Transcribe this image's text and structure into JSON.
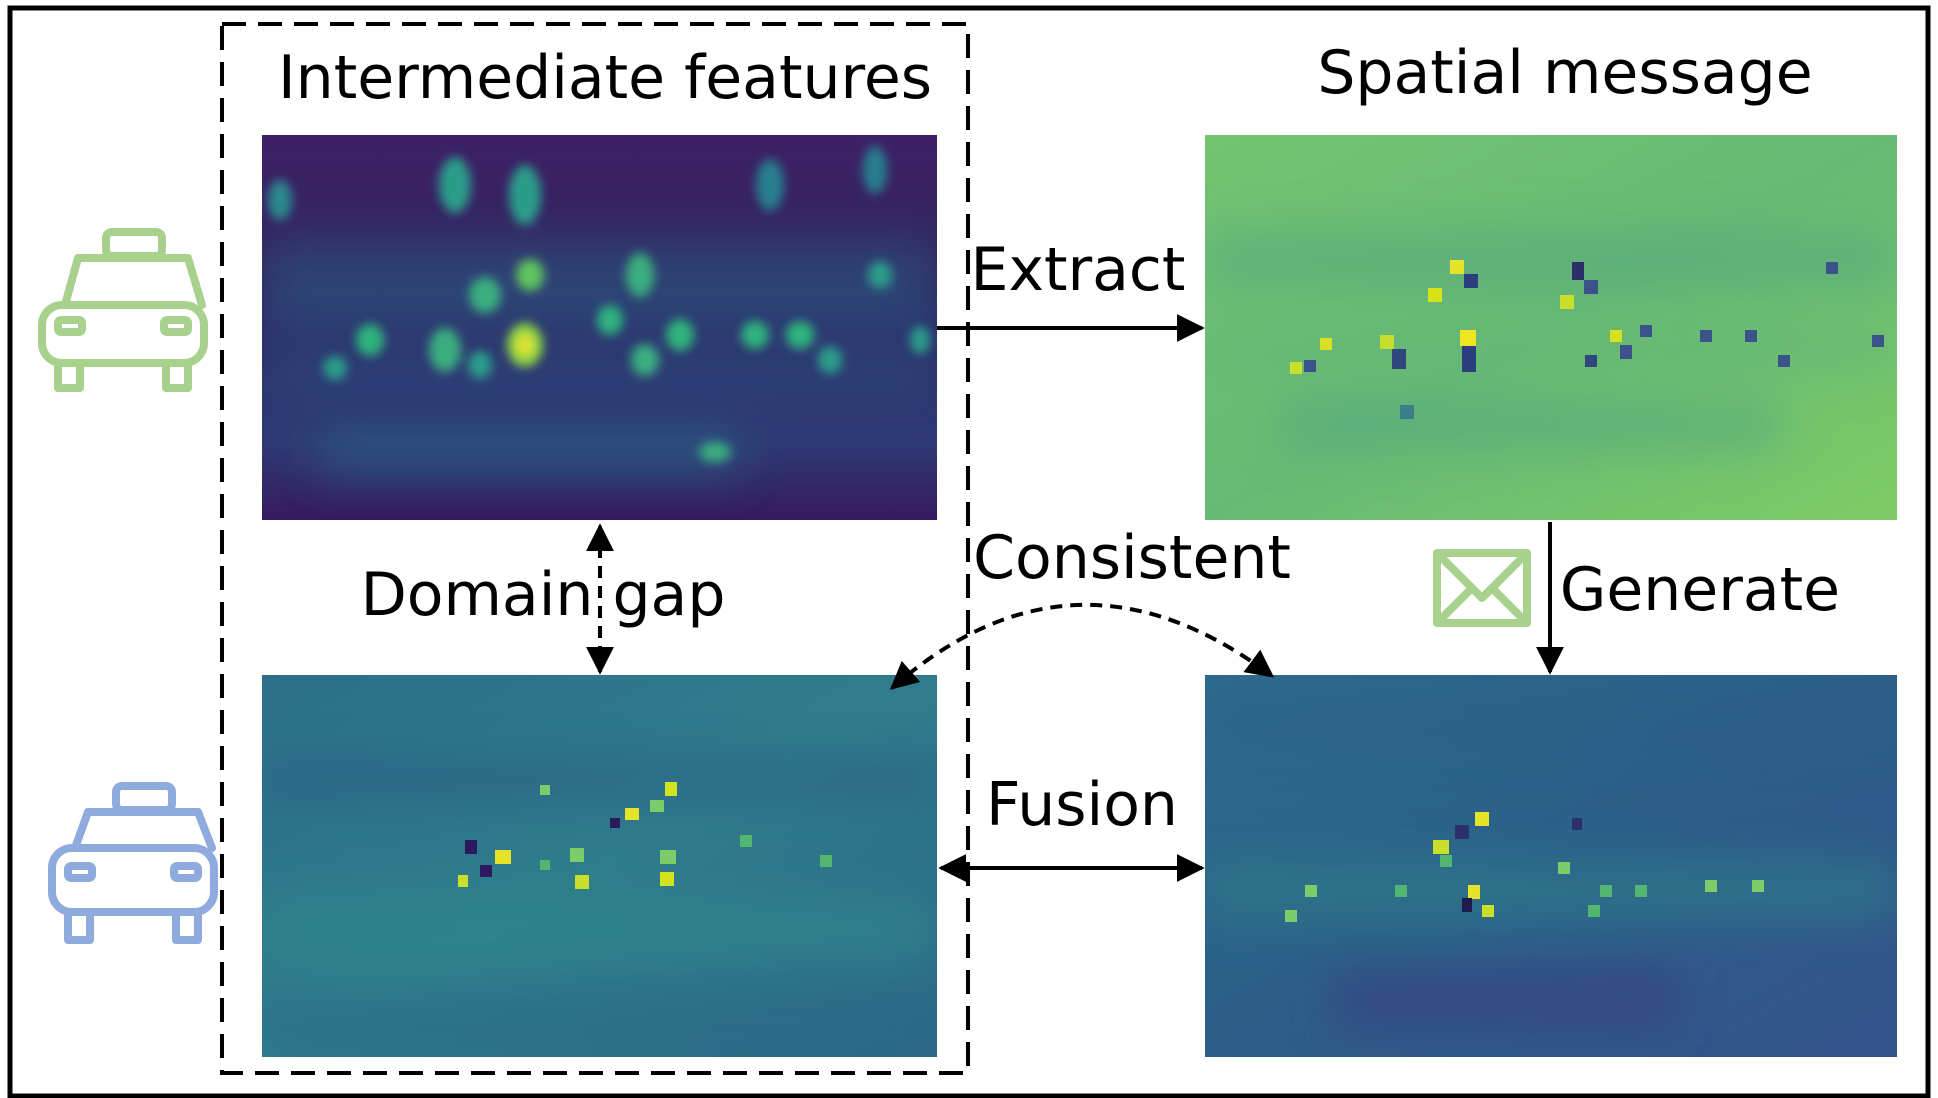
{
  "labels": {
    "intermediate_features": "Intermediate features",
    "spatial_message": "Spatial message",
    "extract": "Extract",
    "generate": "Generate",
    "consistent": "Consistent",
    "domain_gap": "Domain gap",
    "fusion": "Fusion"
  },
  "colors": {
    "car_top": "#a9d18e",
    "car_bottom": "#8faadc",
    "envelope": "#a9d18e",
    "arrow": "#000000",
    "feature_dark": "#3b1a5e",
    "feature_mid": "#2f6c8e",
    "feature_green": "#7ccc6a",
    "feature_yellow": "#e6e32a"
  },
  "icons": {
    "top_vehicle": "car-icon",
    "bottom_vehicle": "car-icon",
    "message": "envelope-icon"
  }
}
